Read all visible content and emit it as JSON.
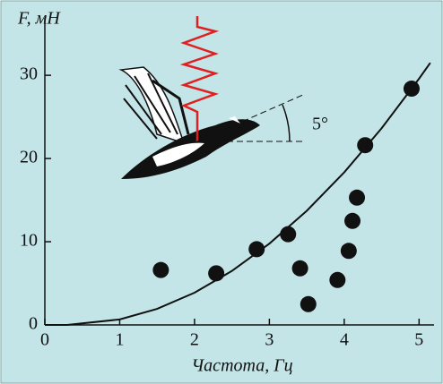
{
  "chart_data": {
    "type": "scatter",
    "x_label": "Частота, Гц",
    "y_label": "F, мН",
    "annotation": "5°",
    "xlim": [
      0,
      5.2
    ],
    "ylim": [
      0,
      36.9
    ],
    "xticks": [
      0,
      1,
      2,
      3,
      4,
      5
    ],
    "yticks": [
      0,
      10,
      20,
      30
    ],
    "series": [
      {
        "kind": "points",
        "color": "#111111",
        "x": [
          1.55,
          2.29,
          2.83,
          3.25,
          3.41,
          3.52,
          3.91,
          4.06,
          4.11,
          4.17,
          4.28,
          4.9
        ],
        "values": [
          6.6,
          6.2,
          9.1,
          10.9,
          6.8,
          2.5,
          5.4,
          8.9,
          12.5,
          15.3,
          21.6,
          28.4
        ]
      },
      {
        "kind": "line",
        "color": "#111111",
        "x": [
          0,
          0.3,
          1,
          1.5,
          2,
          2.5,
          3,
          3.5,
          4,
          4.5,
          5,
          5.15
        ],
        "values": [
          0,
          0,
          0.66,
          1.93,
          3.87,
          6.49,
          9.77,
          13.72,
          18.34,
          23.64,
          29.6,
          31.5
        ]
      }
    ]
  }
}
